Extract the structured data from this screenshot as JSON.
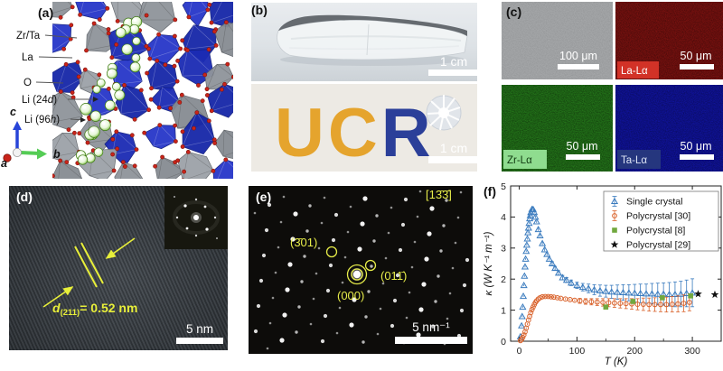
{
  "panel_a": {
    "label": "(a)",
    "atoms": {
      "zr_ta": "Zr/Ta",
      "la": "La",
      "o": "O",
      "li24_pre": "Li (24",
      "li24_it": "d",
      "li24_post": ")",
      "li96_pre": "Li (96",
      "li96_it": "h",
      "li96_post": ")"
    },
    "axis_c": "c",
    "axis_b": "b",
    "axis_a": "a"
  },
  "panel_b": {
    "label": "(b)",
    "scale_top": "1 cm",
    "scale_bottom": "1 cm",
    "logo_u": "U",
    "logo_c": "C",
    "logo_r": "R",
    "logo_gold": "#e5a42d",
    "logo_blue": "#2b3f99"
  },
  "panel_c": {
    "label": "(c)",
    "sem_scale": "100 μm",
    "la_badge": "La-Lα",
    "la_scale": "50 μm",
    "zr_badge": "Zr-Lα",
    "zr_scale": "50 μm",
    "ta_badge": "Ta-Lα",
    "ta_scale": "50 μm",
    "colors": {
      "sem": "#a6a8aa",
      "la": "#7b1210",
      "zr": "#24761a",
      "ta": "#10139b",
      "la_badge_bg": "#d23227",
      "zr_badge_bg": "#8fdc8f",
      "ta_badge_bg": "#25367e"
    }
  },
  "panel_d": {
    "label": "(d)",
    "d_it": "d",
    "d_sub": "(211)",
    "d_rest": "= 0.52 nm",
    "scale": "5 nm",
    "annotation_color": "#e8ef3a"
  },
  "panel_e": {
    "label": "(e)",
    "zone_axis": "[13̄3̄]",
    "spot_301": "(3̄01)",
    "spot_011": "(011̄)",
    "spot_000": "(000)",
    "scale": "5 nm⁻¹",
    "annotation_color": "#e6ec49"
  },
  "panel_f": {
    "label": "(f)"
  },
  "chart_data": {
    "type": "scatter",
    "title": "",
    "xlabel": "T (K)",
    "ylabel": "κ (W K⁻¹ m⁻¹)",
    "xlim": [
      -15,
      350
    ],
    "ylim": [
      0,
      5
    ],
    "xticks": [
      0,
      100,
      200,
      300
    ],
    "xticks_minor": [
      50,
      150,
      250,
      350
    ],
    "yticks": [
      0,
      1,
      2,
      3,
      4,
      5
    ],
    "grid": false,
    "legend_position": "top-right",
    "series": [
      {
        "name": "Single crystal",
        "marker": "triangle-open",
        "color": "#3a7bbe",
        "errorbars": true,
        "x": [
          2,
          4,
          5,
          6,
          7,
          8,
          9,
          10,
          11,
          12,
          13,
          14,
          15,
          16,
          17,
          18,
          19,
          20,
          22,
          24,
          26,
          28,
          30,
          33,
          36,
          40,
          44,
          48,
          52,
          57,
          62,
          68,
          75,
          82,
          90,
          100,
          110,
          120,
          130,
          140,
          150,
          160,
          170,
          180,
          190,
          200,
          210,
          220,
          230,
          240,
          250,
          260,
          270,
          280,
          290,
          300
        ],
        "y": [
          0.15,
          0.5,
          0.8,
          1.1,
          1.45,
          1.8,
          2.1,
          2.4,
          2.65,
          2.9,
          3.1,
          3.3,
          3.5,
          3.65,
          3.8,
          3.95,
          4.05,
          4.15,
          4.25,
          4.25,
          4.15,
          4.0,
          3.85,
          3.6,
          3.4,
          3.15,
          2.95,
          2.8,
          2.65,
          2.5,
          2.35,
          2.2,
          2.05,
          1.97,
          1.88,
          1.8,
          1.74,
          1.7,
          1.66,
          1.63,
          1.61,
          1.59,
          1.58,
          1.57,
          1.56,
          1.55,
          1.54,
          1.53,
          1.53,
          1.52,
          1.52,
          1.51,
          1.51,
          1.52,
          1.54,
          1.56
        ],
        "yerr": [
          0.03,
          0.03,
          0.03,
          0.03,
          0.03,
          0.03,
          0.03,
          0.03,
          0.03,
          0.03,
          0.03,
          0.03,
          0.03,
          0.03,
          0.03,
          0.03,
          0.03,
          0.03,
          0.04,
          0.04,
          0.04,
          0.04,
          0.04,
          0.05,
          0.05,
          0.05,
          0.05,
          0.05,
          0.05,
          0.06,
          0.06,
          0.07,
          0.07,
          0.08,
          0.09,
          0.1,
          0.12,
          0.14,
          0.16,
          0.18,
          0.19,
          0.21,
          0.23,
          0.25,
          0.26,
          0.28,
          0.3,
          0.31,
          0.33,
          0.35,
          0.36,
          0.38,
          0.4,
          0.41,
          0.43,
          0.45
        ]
      },
      {
        "name": "Polycrystal [30]",
        "marker": "circle-open",
        "color": "#d9622b",
        "errorbars": true,
        "x": [
          2,
          4,
          6,
          8,
          10,
          12,
          14,
          16,
          18,
          20,
          22,
          24,
          26,
          28,
          30,
          33,
          36,
          40,
          45,
          50,
          55,
          60,
          66,
          72,
          80,
          88,
          96,
          105,
          115,
          125,
          135,
          145,
          155,
          165,
          175,
          185,
          195,
          205,
          215,
          225,
          235,
          245,
          255,
          265,
          275,
          285,
          295
        ],
        "y": [
          0.02,
          0.06,
          0.12,
          0.2,
          0.3,
          0.42,
          0.55,
          0.68,
          0.8,
          0.92,
          1.02,
          1.1,
          1.18,
          1.25,
          1.3,
          1.36,
          1.4,
          1.43,
          1.44,
          1.44,
          1.43,
          1.42,
          1.4,
          1.38,
          1.36,
          1.34,
          1.32,
          1.3,
          1.28,
          1.27,
          1.26,
          1.25,
          1.24,
          1.23,
          1.22,
          1.21,
          1.2,
          1.19,
          1.19,
          1.18,
          1.18,
          1.18,
          1.18,
          1.19,
          1.2,
          1.22,
          1.25
        ],
        "yerr": [
          0.03,
          0.03,
          0.03,
          0.03,
          0.03,
          0.03,
          0.03,
          0.03,
          0.03,
          0.03,
          0.03,
          0.03,
          0.03,
          0.03,
          0.03,
          0.03,
          0.03,
          0.03,
          0.03,
          0.03,
          0.03,
          0.03,
          0.03,
          0.03,
          0.03,
          0.03,
          0.03,
          0.08,
          0.09,
          0.1,
          0.11,
          0.12,
          0.13,
          0.14,
          0.15,
          0.16,
          0.17,
          0.18,
          0.2,
          0.21,
          0.22,
          0.23,
          0.24,
          0.25,
          0.26,
          0.27,
          0.27
        ]
      },
      {
        "name": "Polycrystal [8]",
        "marker": "square-filled",
        "color": "#71a83f",
        "errorbars": false,
        "x": [
          150,
          197,
          248,
          297
        ],
        "y": [
          1.1,
          1.28,
          1.4,
          1.46
        ]
      },
      {
        "name": "Polycrystal [29]",
        "marker": "star-filled",
        "color": "#111111",
        "errorbars": false,
        "x": [
          310,
          339
        ],
        "y": [
          1.52,
          1.5
        ]
      }
    ]
  }
}
